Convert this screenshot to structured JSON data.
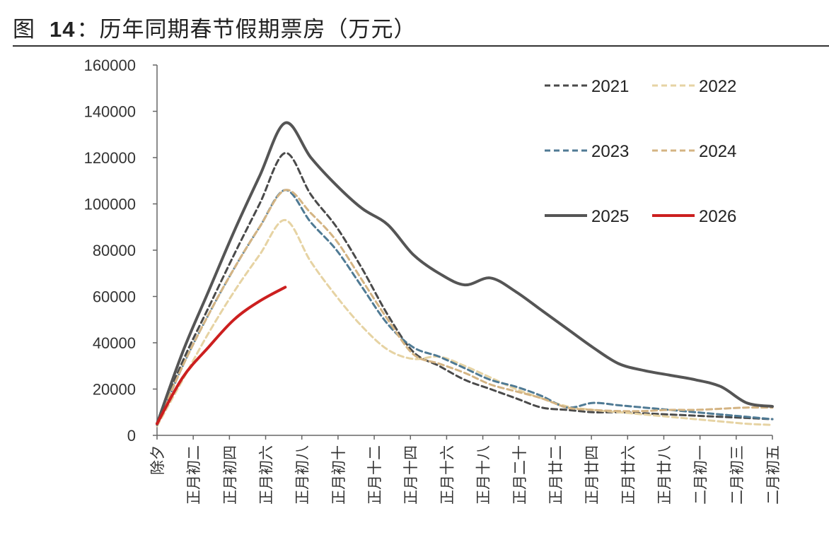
{
  "title": {
    "prefix": "图",
    "number": "14",
    "text": "：历年同期春节假期票房（万元）"
  },
  "chart_data": {
    "type": "line",
    "title": "图 14：历年同期春节假期票房（万元）",
    "xlabel": "",
    "ylabel": "",
    "ylim": [
      0,
      160000
    ],
    "yticks": [
      0,
      20000,
      40000,
      60000,
      80000,
      100000,
      120000,
      140000,
      160000
    ],
    "grid": false,
    "legend_position": "top-right",
    "x": [
      0,
      2,
      4,
      6,
      8,
      10,
      12,
      14,
      16,
      18,
      20,
      22,
      24,
      26,
      28,
      30,
      32,
      34
    ],
    "xtick_labels": [
      "除夕",
      "正月初二",
      "正月初四",
      "正月初六",
      "正月初八",
      "正月初十",
      "正月十二",
      "正月十四",
      "正月十六",
      "正月十八",
      "正月二十",
      "正月廿二",
      "正月廿四",
      "正月廿六",
      "正月廿八",
      "二月初一",
      "二月初三",
      "二月初五"
    ],
    "series": [
      {
        "name": "2021",
        "color": "#4a4a4a",
        "dash": "8,5",
        "width": 3,
        "points": [
          [
            0,
            5000
          ],
          [
            1,
            32000
          ],
          [
            2,
            55000
          ],
          [
            3,
            78000
          ],
          [
            4,
            100000
          ],
          [
            5,
            122000
          ],
          [
            6,
            104000
          ],
          [
            7,
            90000
          ],
          [
            8,
            72000
          ],
          [
            9,
            52000
          ],
          [
            10,
            36000
          ],
          [
            11,
            30000
          ],
          [
            12,
            24000
          ],
          [
            13,
            20000
          ],
          [
            14,
            16000
          ],
          [
            15,
            12000
          ],
          [
            16,
            11000
          ],
          [
            17,
            10000
          ],
          [
            18,
            10000
          ],
          [
            19,
            9500
          ],
          [
            20,
            9000
          ],
          [
            21,
            8500
          ],
          [
            22,
            8000
          ],
          [
            23,
            7500
          ],
          [
            24,
            7000
          ]
        ]
      },
      {
        "name": "2022",
        "color": "#e6d3a3",
        "dash": "8,5",
        "width": 3,
        "points": [
          [
            0,
            4000
          ],
          [
            1,
            24000
          ],
          [
            2,
            44000
          ],
          [
            3,
            62000
          ],
          [
            4,
            78000
          ],
          [
            5,
            93000
          ],
          [
            6,
            75000
          ],
          [
            7,
            60000
          ],
          [
            8,
            47000
          ],
          [
            9,
            37000
          ],
          [
            10,
            33000
          ],
          [
            11,
            34000
          ],
          [
            12,
            30000
          ],
          [
            13,
            25000
          ],
          [
            14,
            20000
          ],
          [
            15,
            16000
          ],
          [
            16,
            12500
          ],
          [
            17,
            11000
          ],
          [
            18,
            10000
          ],
          [
            19,
            9000
          ],
          [
            20,
            8000
          ],
          [
            21,
            7000
          ],
          [
            22,
            6000
          ],
          [
            23,
            5000
          ],
          [
            24,
            4500
          ]
        ]
      },
      {
        "name": "2023",
        "color": "#4f7a94",
        "dash": "8,5",
        "width": 3,
        "points": [
          [
            0,
            4500
          ],
          [
            1,
            30000
          ],
          [
            2,
            52000
          ],
          [
            3,
            72000
          ],
          [
            4,
            90000
          ],
          [
            5,
            106000
          ],
          [
            6,
            92000
          ],
          [
            7,
            80000
          ],
          [
            8,
            64000
          ],
          [
            9,
            48000
          ],
          [
            10,
            38000
          ],
          [
            11,
            34000
          ],
          [
            12,
            29000
          ],
          [
            13,
            24000
          ],
          [
            14,
            21000
          ],
          [
            15,
            17000
          ],
          [
            16,
            12000
          ],
          [
            17,
            14000
          ],
          [
            18,
            13000
          ],
          [
            19,
            12000
          ],
          [
            20,
            11000
          ],
          [
            21,
            10000
          ],
          [
            22,
            9000
          ],
          [
            23,
            8000
          ],
          [
            24,
            7000
          ]
        ]
      },
      {
        "name": "2024",
        "color": "#d4b483",
        "dash": "8,5",
        "width": 3,
        "points": [
          [
            0,
            5000
          ],
          [
            1,
            30000
          ],
          [
            2,
            52000
          ],
          [
            3,
            72000
          ],
          [
            4,
            90000
          ],
          [
            5,
            106000
          ],
          [
            6,
            96000
          ],
          [
            7,
            84000
          ],
          [
            8,
            67000
          ],
          [
            9,
            50000
          ],
          [
            10,
            35000
          ],
          [
            11,
            31000
          ],
          [
            12,
            27000
          ],
          [
            13,
            22000
          ],
          [
            14,
            19000
          ],
          [
            15,
            16000
          ],
          [
            16,
            12000
          ],
          [
            17,
            11000
          ],
          [
            18,
            10500
          ],
          [
            19,
            10500
          ],
          [
            20,
            11000
          ],
          [
            21,
            11000
          ],
          [
            22,
            11500
          ],
          [
            23,
            12000
          ],
          [
            24,
            12000
          ]
        ]
      },
      {
        "name": "2025",
        "color": "#555555",
        "dash": "",
        "width": 4,
        "points": [
          [
            0,
            5000
          ],
          [
            1,
            36000
          ],
          [
            2,
            62000
          ],
          [
            3,
            88000
          ],
          [
            4,
            112000
          ],
          [
            5,
            135000
          ],
          [
            6,
            120000
          ],
          [
            7,
            108000
          ],
          [
            8,
            98000
          ],
          [
            9,
            91000
          ],
          [
            10,
            78000
          ],
          [
            11,
            70000
          ],
          [
            12,
            65000
          ],
          [
            13,
            68000
          ],
          [
            14,
            62000
          ],
          [
            15,
            54000
          ],
          [
            16,
            46000
          ],
          [
            17,
            38000
          ],
          [
            18,
            31000
          ],
          [
            19,
            28000
          ],
          [
            20,
            26000
          ],
          [
            21,
            24000
          ],
          [
            22,
            21000
          ],
          [
            23,
            14000
          ],
          [
            24,
            12500
          ]
        ]
      },
      {
        "name": "2026",
        "color": "#cc1f1f",
        "dash": "",
        "width": 4,
        "points": [
          [
            0,
            5000
          ],
          [
            1,
            25000
          ],
          [
            2,
            38000
          ],
          [
            3,
            50000
          ],
          [
            4,
            58000
          ],
          [
            5,
            64000
          ]
        ]
      }
    ]
  },
  "legend": [
    {
      "label": "2021"
    },
    {
      "label": "2022"
    },
    {
      "label": "2023"
    },
    {
      "label": "2024"
    },
    {
      "label": "2025"
    },
    {
      "label": "2026"
    }
  ]
}
